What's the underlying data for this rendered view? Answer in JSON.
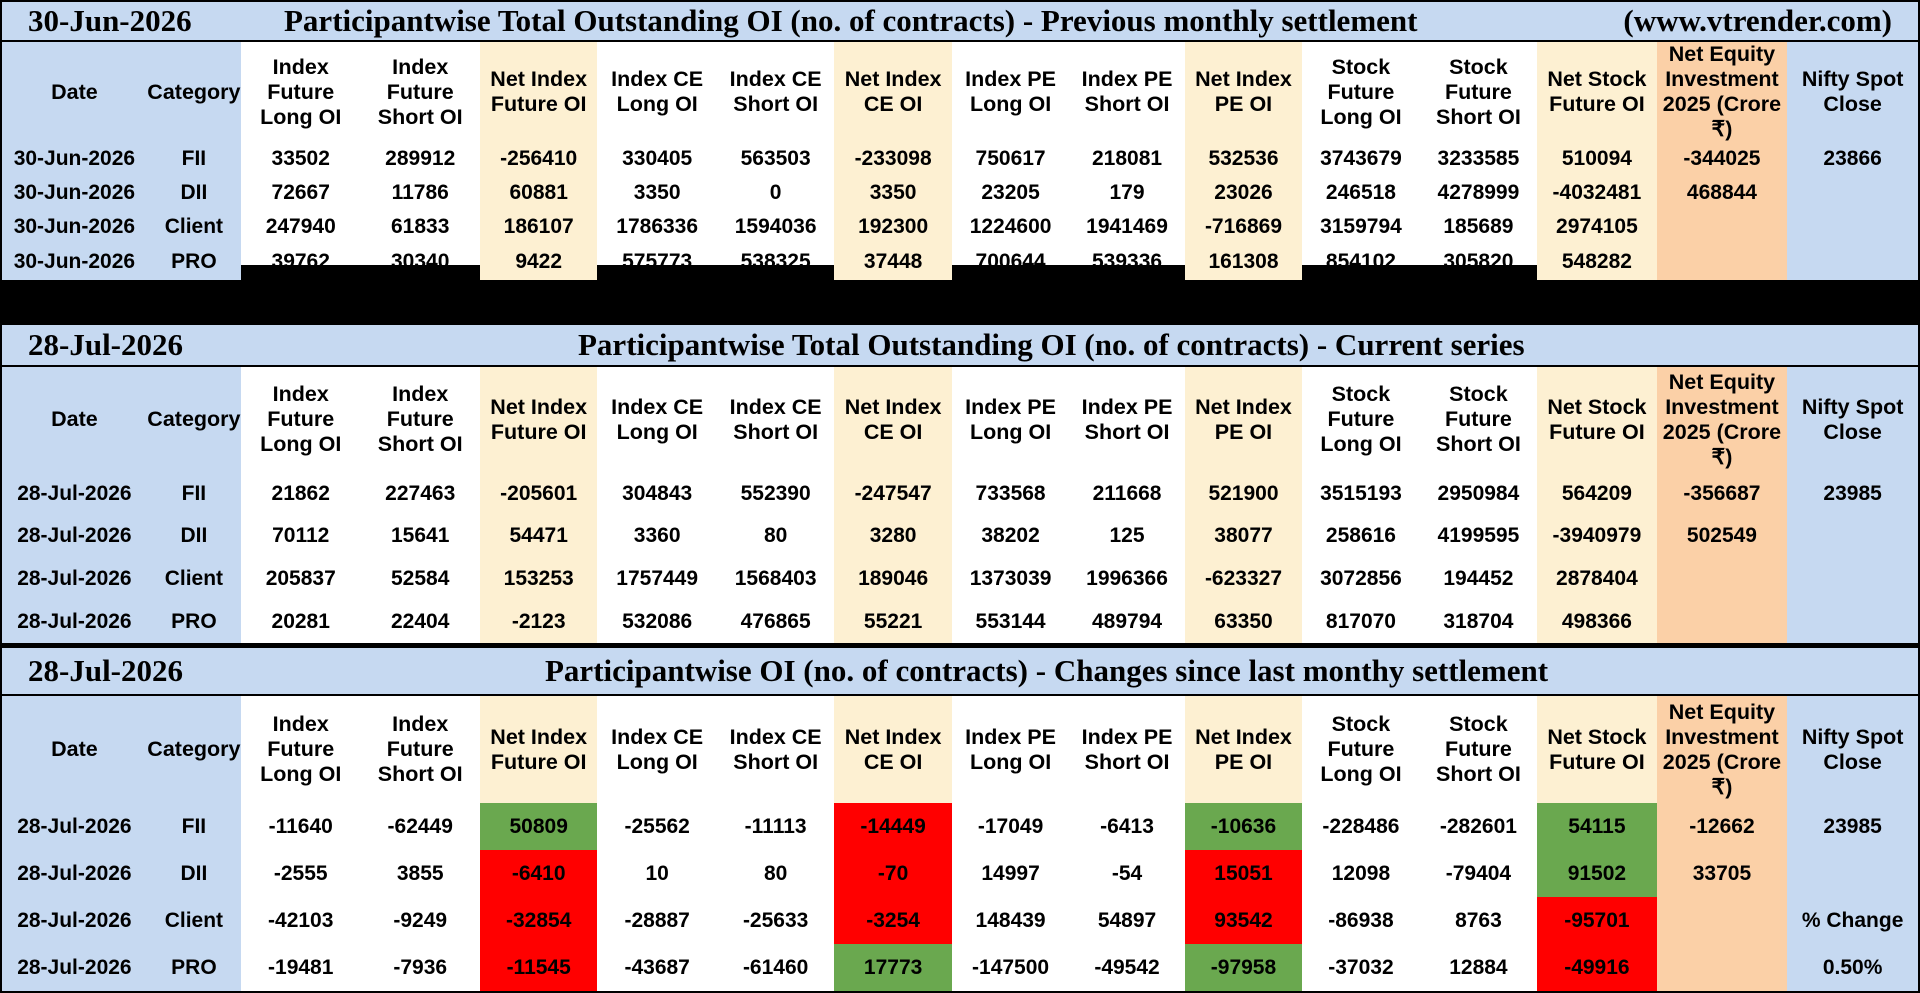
{
  "colors": {
    "title_bg": "#c6d9f1",
    "net_bg": "#fdf0d2",
    "equity_bg": "#fbd0a7",
    "negative": "#ff0000",
    "positive": "#3a7d22",
    "cell_neg_fill": "#ff0000",
    "cell_pos_fill": "#6aa84f"
  },
  "headers": [
    "Date",
    "Category",
    "Index Future Long OI",
    "Index Future Short OI",
    "Net Index Future OI",
    "Index CE Long OI",
    "Index CE Short OI",
    "Net Index CE OI",
    "Index PE Long OI",
    "Index PE Short OI",
    "Net Index PE OI",
    "Stock Future Long OI",
    "Stock Future Short OI",
    "Net Stock Future OI",
    "Net Equity Investment 2025 (Crore ₹)",
    "Nifty Spot Close"
  ],
  "sections": [
    {
      "title_date": "30-Jun-2026",
      "title": "Participantwise Total Outstanding OI (no. of contracts) - Previous monthly settlement",
      "site": "(www.vtrender.com)",
      "rows": [
        {
          "date": "30-Jun-2026",
          "category": "FII",
          "ifl": "33502",
          "ifs": "289912",
          "nif": "-256410",
          "cel": "330405",
          "ces": "563503",
          "nce": "-233098",
          "pel": "750617",
          "pes": "218081",
          "npe": "532536",
          "sfl": "3743679",
          "sfs": "3233585",
          "nsf": "510094",
          "eq": "-344025"
        },
        {
          "date": "30-Jun-2026",
          "category": "DII",
          "ifl": "72667",
          "ifs": "11786",
          "nif": "60881",
          "cel": "3350",
          "ces": "0",
          "nce": "3350",
          "pel": "23205",
          "pes": "179",
          "npe": "23026",
          "sfl": "246518",
          "sfs": "4278999",
          "nsf": "-4032481",
          "eq": "468844"
        },
        {
          "date": "30-Jun-2026",
          "category": "Client",
          "ifl": "247940",
          "ifs": "61833",
          "nif": "186107",
          "cel": "1786336",
          "ces": "1594036",
          "nce": "192300",
          "pel": "1224600",
          "pes": "1941469",
          "npe": "-716869",
          "sfl": "3159794",
          "sfs": "185689",
          "nsf": "2974105",
          "eq": ""
        },
        {
          "date": "30-Jun-2026",
          "category": "PRO",
          "ifl": "39762",
          "ifs": "30340",
          "nif": "9422",
          "cel": "575773",
          "ces": "538325",
          "nce": "37448",
          "pel": "700644",
          "pes": "539336",
          "npe": "161308",
          "sfl": "854102",
          "sfs": "305820",
          "nsf": "548282",
          "eq": ""
        }
      ],
      "nifty": [
        "23866"
      ]
    },
    {
      "title_date": "28-Jul-2026",
      "title": "Participantwise Total Outstanding OI (no. of contracts) - Current series",
      "site": "",
      "rows": [
        {
          "date": "28-Jul-2026",
          "category": "FII",
          "ifl": "21862",
          "ifs": "227463",
          "nif": "-205601",
          "cel": "304843",
          "ces": "552390",
          "nce": "-247547",
          "pel": "733568",
          "pes": "211668",
          "npe": "521900",
          "sfl": "3515193",
          "sfs": "2950984",
          "nsf": "564209",
          "eq": "-356687"
        },
        {
          "date": "28-Jul-2026",
          "category": "DII",
          "ifl": "70112",
          "ifs": "15641",
          "nif": "54471",
          "cel": "3360",
          "ces": "80",
          "nce": "3280",
          "pel": "38202",
          "pes": "125",
          "npe": "38077",
          "sfl": "258616",
          "sfs": "4199595",
          "nsf": "-3940979",
          "eq": "502549"
        },
        {
          "date": "28-Jul-2026",
          "category": "Client",
          "ifl": "205837",
          "ifs": "52584",
          "nif": "153253",
          "cel": "1757449",
          "ces": "1568403",
          "nce": "189046",
          "pel": "1373039",
          "pes": "1996366",
          "npe": "-623327",
          "sfl": "3072856",
          "sfs": "194452",
          "nsf": "2878404",
          "eq": ""
        },
        {
          "date": "28-Jul-2026",
          "category": "PRO",
          "ifl": "20281",
          "ifs": "22404",
          "nif": "-2123",
          "cel": "532086",
          "ces": "476865",
          "nce": "55221",
          "pel": "553144",
          "pes": "489794",
          "npe": "63350",
          "sfl": "817070",
          "sfs": "318704",
          "nsf": "498366",
          "eq": ""
        }
      ],
      "nifty": [
        "23985"
      ]
    },
    {
      "title_date": "28-Jul-2026",
      "title": "Participantwise OI (no. of contracts) - Changes since last monthy settlement",
      "site": "",
      "rows": [
        {
          "date": "28-Jul-2026",
          "category": "FII",
          "ifl": "-11640",
          "ifs": "-62449",
          "nif": "50809",
          "cel": "-25562",
          "ces": "-11113",
          "nce": "-14449",
          "pel": "-17049",
          "pes": "-6413",
          "npe": "-10636",
          "sfl": "-228486",
          "sfs": "-282601",
          "nsf": "54115",
          "eq": "-12662"
        },
        {
          "date": "28-Jul-2026",
          "category": "DII",
          "ifl": "-2555",
          "ifs": "3855",
          "nif": "-6410",
          "cel": "10",
          "ces": "80",
          "nce": "-70",
          "pel": "14997",
          "pes": "-54",
          "npe": "15051",
          "sfl": "12098",
          "sfs": "-79404",
          "nsf": "91502",
          "eq": "33705"
        },
        {
          "date": "28-Jul-2026",
          "category": "Client",
          "ifl": "-42103",
          "ifs": "-9249",
          "nif": "-32854",
          "cel": "-28887",
          "ces": "-25633",
          "nce": "-3254",
          "pel": "148439",
          "pes": "54897",
          "npe": "93542",
          "sfl": "-86938",
          "sfs": "8763",
          "nsf": "-95701",
          "eq": ""
        },
        {
          "date": "28-Jul-2026",
          "category": "PRO",
          "ifl": "-19481",
          "ifs": "-7936",
          "nif": "-11545",
          "cel": "-43687",
          "ces": "-61460",
          "nce": "17773",
          "pel": "-147500",
          "pes": "-49542",
          "npe": "-97958",
          "sfl": "-37032",
          "sfs": "12884",
          "nsf": "-49916",
          "eq": ""
        }
      ],
      "nifty": [
        "23985",
        "",
        "% Change",
        "0.50%"
      ]
    }
  ]
}
